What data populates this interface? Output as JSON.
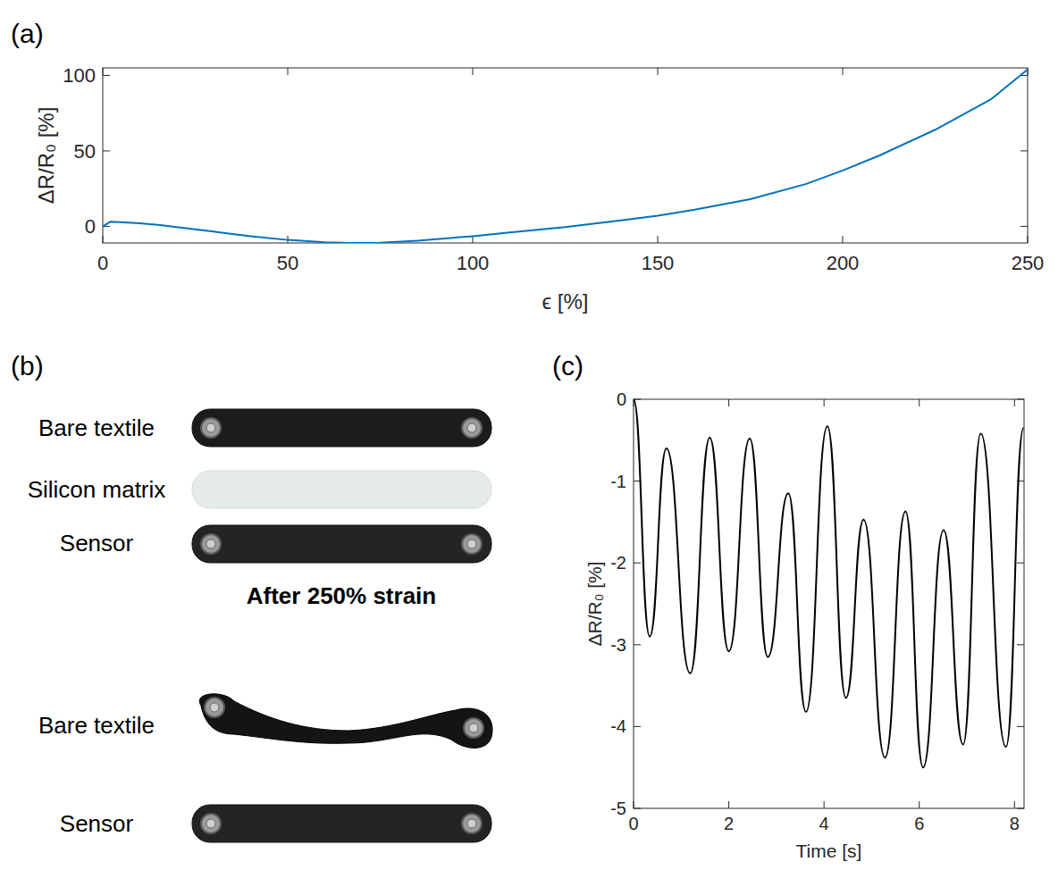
{
  "chart_data": [
    {
      "type": "line",
      "panel_label": "(a)",
      "x_label": "ϵ [%]",
      "y_label": "ΔR/R₀ [%]",
      "color": "#0072bd",
      "x": [
        0,
        2,
        5,
        10,
        15,
        20,
        25,
        30,
        40,
        50,
        60,
        67,
        75,
        85,
        100,
        110,
        125,
        140,
        150,
        160,
        175,
        190,
        200,
        210,
        225,
        240,
        250
      ],
      "values": [
        0,
        3,
        2.8,
        2,
        1,
        -0.5,
        -2,
        -3.5,
        -6.5,
        -9,
        -10.5,
        -11,
        -10.8,
        -9.5,
        -6.5,
        -4,
        -0.5,
        4,
        7,
        11,
        18,
        28,
        37,
        47,
        64,
        84,
        104
      ],
      "xlim": [
        0,
        250
      ],
      "ylim": [
        -11,
        105
      ],
      "xticks": [
        0,
        50,
        100,
        150,
        200,
        250
      ],
      "yticks": [
        0,
        50,
        100
      ],
      "grid": false
    },
    {
      "type": "line",
      "panel_label": "(c)",
      "x_label": "Time [s]",
      "y_label": "ΔR/R₀ [%]",
      "color": "#000000",
      "x": [
        0,
        0.34,
        0.69,
        1.19,
        1.6,
        2.0,
        2.44,
        2.82,
        3.25,
        3.62,
        4.07,
        4.46,
        4.83,
        5.28,
        5.71,
        6.08,
        6.51,
        6.92,
        7.29,
        7.82,
        8.19
      ],
      "values": [
        0,
        -2.9,
        -0.6,
        -3.35,
        -0.47,
        -3.08,
        -0.48,
        -3.15,
        -1.15,
        -3.82,
        -0.33,
        -3.65,
        -1.47,
        -4.38,
        -1.37,
        -4.5,
        -1.6,
        -4.22,
        -0.42,
        -4.25,
        -0.35
      ],
      "xlim": [
        0,
        8.2
      ],
      "ylim": [
        -5,
        0
      ],
      "xticks": [
        0,
        2,
        4,
        6,
        8
      ],
      "yticks": [
        -5,
        -4,
        -3,
        -2,
        -1,
        0
      ],
      "grid": false
    }
  ],
  "photo_panel": {
    "panel_label": "(b)",
    "labels_before": [
      "Bare textile",
      "Silicon matrix",
      "Sensor"
    ],
    "heading": "After 250% strain",
    "labels_after": [
      "Bare textile",
      "Sensor"
    ]
  }
}
